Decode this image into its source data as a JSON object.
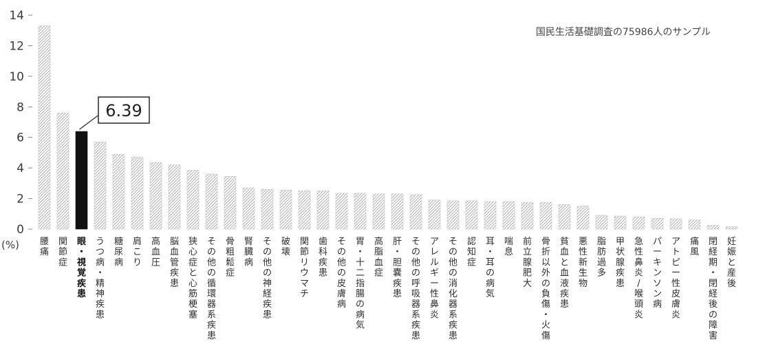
{
  "chart_data": {
    "type": "bar",
    "title": "",
    "xlabel": "",
    "ylabel": "(%)",
    "ylim": [
      0,
      14
    ],
    "yticks": [
      0,
      2,
      4,
      6,
      8,
      10,
      12,
      14
    ],
    "grid": false,
    "annotation": "国民生活基礎調査の75986人のサンプル",
    "highlight": {
      "index": 2,
      "label": "6.39"
    },
    "colors": {
      "bar_hatch": "#b8b8b8",
      "bar_highlight": "#111111",
      "axis": "#888888"
    },
    "categories": [
      "腰痛",
      "関節症",
      "眼・視覚疾患",
      "うつ病・精神疾患",
      "糖尿病",
      "肩こり",
      "高血圧",
      "脳血管疾患",
      "狭心症と心筋梗塞",
      "その他の循環器系疾患",
      "骨粗鬆症",
      "腎臓病",
      "その他の神経疾患",
      "破壊",
      "関節リウマチ",
      "歯科疾患",
      "その他の皮膚病",
      "胃・十二指腸の病気",
      "高脂血症",
      "肝・胆嚢疾患",
      "その他の呼吸器系疾患",
      "アレルギー性鼻炎",
      "その他の消化器系疾患",
      "認知症",
      "耳・耳の病気",
      "喘息",
      "前立腺肥大",
      "骨折以外の負傷・火傷",
      "貧血と血液疾患",
      "悪性新生物",
      "脂肪過多",
      "甲状腺疾患",
      "急性鼻炎/喉頭炎",
      "パーキンソン病",
      "アトピー性皮膚炎",
      "痛風",
      "閉経期・閉経後の障害",
      "妊娠と産後"
    ],
    "values": [
      13.3,
      7.6,
      6.39,
      5.7,
      4.9,
      4.7,
      4.35,
      4.2,
      3.85,
      3.6,
      3.45,
      2.7,
      2.6,
      2.55,
      2.5,
      2.5,
      2.35,
      2.35,
      2.3,
      2.3,
      2.25,
      1.9,
      1.85,
      1.85,
      1.8,
      1.8,
      1.75,
      1.75,
      1.6,
      1.5,
      0.9,
      0.85,
      0.8,
      0.7,
      0.68,
      0.6,
      0.25,
      0.15
    ]
  }
}
